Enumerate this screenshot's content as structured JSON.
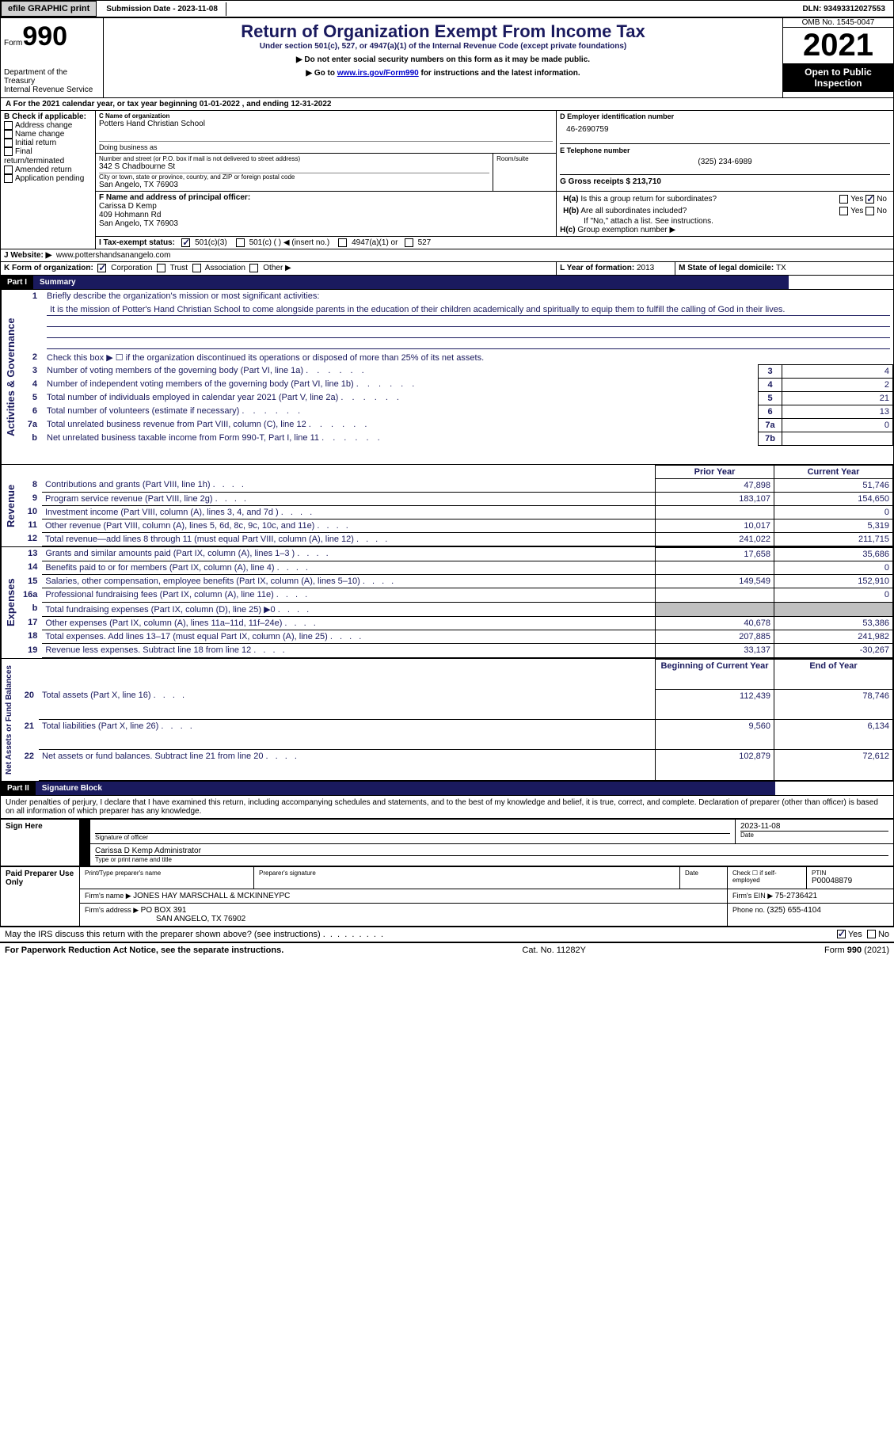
{
  "topbar": {
    "efile_btn": "efile GRAPHIC print",
    "sub_date_label": "Submission Date - ",
    "sub_date": "2023-11-08",
    "dln_label": "DLN: ",
    "dln": "93493312027553"
  },
  "header": {
    "form_word": "Form",
    "form_num": "990",
    "dept1": "Department of the Treasury",
    "dept2": "Internal Revenue Service",
    "title": "Return of Organization Exempt From Income Tax",
    "sub1": "Under section 501(c), 527, or 4947(a)(1) of the Internal Revenue Code (except private foundations)",
    "sub2": "▶ Do not enter social security numbers on this form as it may be made public.",
    "sub3a": "▶ Go to ",
    "sub3_link": "www.irs.gov/Form990",
    "sub3b": " for instructions and the latest information.",
    "omb": "OMB No. 1545-0047",
    "year": "2021",
    "open_pub": "Open to Public Inspection"
  },
  "section_a": {
    "a_text": "A For the 2021 calendar year, or tax year beginning ",
    "a_begin": "01-01-2022",
    "a_mid": " , and ending ",
    "a_end": "12-31-2022",
    "b_label": "B Check if applicable:",
    "b_opts": [
      "Address change",
      "Name change",
      "Initial return",
      "Final return/terminated",
      "Amended return",
      "Application pending"
    ],
    "c_label": "C Name of organization",
    "c_name": "Potters Hand Christian School",
    "dba_label": "Doing business as",
    "street_label": "Number and street (or P.O. box if mail is not delivered to street address)",
    "street": "342 S Chadbourne St",
    "room_label": "Room/suite",
    "city_label": "City or town, state or province, country, and ZIP or foreign postal code",
    "city": "San Angelo, TX  76903",
    "d_label": "D Employer identification number",
    "d_ein": "46-2690759",
    "e_label": "E Telephone number",
    "e_phone": "(325) 234-6989",
    "g_label": "G Gross receipts $ ",
    "g_val": "213,710",
    "f_label": "F  Name and address of principal officer:",
    "f_name": "Carissa D Kemp",
    "f_addr1": "409 Hohmann Rd",
    "f_addr2": "San Angelo, TX  76903",
    "ha_label": "H(a)  Is this a group return for subordinates?",
    "hb_label": "H(b)  Are all subordinates included?",
    "h_note": "If \"No,\" attach a list. See instructions.",
    "hc_label": "H(c)  Group exemption number ▶",
    "i_label": "I  Tax-exempt status:",
    "i_501c3": "501(c)(3)",
    "i_501c": "501(c) (  ) ◀ (insert no.)",
    "i_4947": "4947(a)(1) or",
    "i_527": "527",
    "j_label": "J  Website: ▶",
    "j_site": "www.pottershandsanangelo.com",
    "k_label": "K Form of organization:",
    "k_opts": [
      "Corporation",
      "Trust",
      "Association",
      "Other ▶"
    ],
    "l_label": "L Year of formation: ",
    "l_val": "2013",
    "m_label": "M State of legal domicile: ",
    "m_val": "TX",
    "yes": "Yes",
    "no": "No"
  },
  "part1": {
    "part": "Part I",
    "title": "Summary",
    "vert_ag": "Activities & Governance",
    "vert_rev": "Revenue",
    "vert_exp": "Expenses",
    "vert_na": "Net Assets or Fund Balances",
    "l1_label": "Briefly describe the organization's mission or most significant activities:",
    "l1_mission": "It is the mission of Potter's Hand Christian School to come alongside parents in the education of their children academically and spiritually to equip them to fulfill the calling of God in their lives.",
    "l2": "Check this box ▶ ☐  if the organization discontinued its operations or disposed of more than 25% of its net assets.",
    "rows_ag": [
      {
        "n": "3",
        "t": "Number of voting members of the governing body (Part VI, line 1a)",
        "box": "3",
        "v": "4"
      },
      {
        "n": "4",
        "t": "Number of independent voting members of the governing body (Part VI, line 1b)",
        "box": "4",
        "v": "2"
      },
      {
        "n": "5",
        "t": "Total number of individuals employed in calendar year 2021 (Part V, line 2a)",
        "box": "5",
        "v": "21"
      },
      {
        "n": "6",
        "t": "Total number of volunteers (estimate if necessary)",
        "box": "6",
        "v": "13"
      },
      {
        "n": "7a",
        "t": "Total unrelated business revenue from Part VIII, column (C), line 12",
        "box": "7a",
        "v": "0"
      },
      {
        "n": "b",
        "t": "Net unrelated business taxable income from Form 990-T, Part I, line 11",
        "box": "7b",
        "v": ""
      }
    ],
    "py_hdr": "Prior Year",
    "cy_hdr": "Current Year",
    "rows_rev": [
      {
        "n": "8",
        "t": "Contributions and grants (Part VIII, line 1h)",
        "py": "47,898",
        "cy": "51,746"
      },
      {
        "n": "9",
        "t": "Program service revenue (Part VIII, line 2g)",
        "py": "183,107",
        "cy": "154,650"
      },
      {
        "n": "10",
        "t": "Investment income (Part VIII, column (A), lines 3, 4, and 7d )",
        "py": "",
        "cy": "0"
      },
      {
        "n": "11",
        "t": "Other revenue (Part VIII, column (A), lines 5, 6d, 8c, 9c, 10c, and 11e)",
        "py": "10,017",
        "cy": "5,319"
      },
      {
        "n": "12",
        "t": "Total revenue—add lines 8 through 11 (must equal Part VIII, column (A), line 12)",
        "py": "241,022",
        "cy": "211,715"
      }
    ],
    "rows_exp": [
      {
        "n": "13",
        "t": "Grants and similar amounts paid (Part IX, column (A), lines 1–3 )",
        "py": "17,658",
        "cy": "35,686"
      },
      {
        "n": "14",
        "t": "Benefits paid to or for members (Part IX, column (A), line 4)",
        "py": "",
        "cy": "0"
      },
      {
        "n": "15",
        "t": "Salaries, other compensation, employee benefits (Part IX, column (A), lines 5–10)",
        "py": "149,549",
        "cy": "152,910"
      },
      {
        "n": "16a",
        "t": "Professional fundraising fees (Part IX, column (A), line 11e)",
        "py": "",
        "cy": "0"
      },
      {
        "n": "b",
        "t": "Total fundraising expenses (Part IX, column (D), line 25) ▶0",
        "py": "GRAY",
        "cy": "GRAY"
      },
      {
        "n": "17",
        "t": "Other expenses (Part IX, column (A), lines 11a–11d, 11f–24e)",
        "py": "40,678",
        "cy": "53,386"
      },
      {
        "n": "18",
        "t": "Total expenses. Add lines 13–17 (must equal Part IX, column (A), line 25)",
        "py": "207,885",
        "cy": "241,982"
      },
      {
        "n": "19",
        "t": "Revenue less expenses. Subtract line 18 from line 12",
        "py": "33,137",
        "cy": "-30,267"
      }
    ],
    "bcy_hdr": "Beginning of Current Year",
    "ey_hdr": "End of Year",
    "rows_na": [
      {
        "n": "20",
        "t": "Total assets (Part X, line 16)",
        "py": "112,439",
        "cy": "78,746"
      },
      {
        "n": "21",
        "t": "Total liabilities (Part X, line 26)",
        "py": "9,560",
        "cy": "6,134"
      },
      {
        "n": "22",
        "t": "Net assets or fund balances. Subtract line 21 from line 20",
        "py": "102,879",
        "cy": "72,612"
      }
    ]
  },
  "part2": {
    "part": "Part II",
    "title": "Signature Block",
    "decl": "Under penalties of perjury, I declare that I have examined this return, including accompanying schedules and statements, and to the best of my knowledge and belief, it is true, correct, and complete. Declaration of preparer (other than officer) is based on all information of which preparer has any knowledge.",
    "sign_here": "Sign Here",
    "sig_officer": "Signature of officer",
    "sig_date": "2023-11-08",
    "date_lbl": "Date",
    "typed_name": "Carissa D Kemp  Administrator",
    "typed_lbl": "Type or print name and title",
    "paid_prep": "Paid Preparer Use Only",
    "p_name_lbl": "Print/Type preparer's name",
    "p_sig_lbl": "Preparer's signature",
    "p_date_lbl": "Date",
    "p_check_lbl": "Check ☐ if self-employed",
    "p_ptin_lbl": "PTIN",
    "p_ptin": "P00048879",
    "firm_name_lbl": "Firm's name    ▶ ",
    "firm_name": "JONES HAY MARSCHALL & MCKINNEYPC",
    "firm_ein_lbl": "Firm's EIN ▶ ",
    "firm_ein": "75-2736421",
    "firm_addr_lbl": "Firm's address ▶ ",
    "firm_addr1": "PO BOX 391",
    "firm_addr2": "SAN ANGELO, TX  76902",
    "firm_phone_lbl": "Phone no. ",
    "firm_phone": "(325) 655-4104",
    "discuss": "May the IRS discuss this return with the preparer shown above? (see instructions)",
    "yes": "Yes",
    "no": "No"
  },
  "footer": {
    "left": "For Paperwork Reduction Act Notice, see the separate instructions.",
    "mid": "Cat. No. 11282Y",
    "right": "Form 990 (2021)"
  }
}
